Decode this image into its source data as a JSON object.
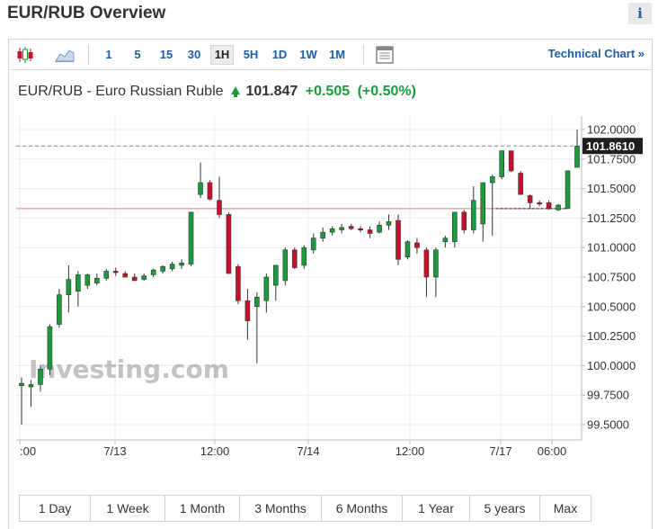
{
  "page": {
    "title": "EUR/RUB Overview",
    "info_glyph": "i"
  },
  "toolbar": {
    "candle_icon": "candlestick-chart-icon",
    "area_icon": "area-chart-icon",
    "timeframes": [
      "1",
      "5",
      "15",
      "30",
      "1H",
      "5H",
      "1D",
      "1W",
      "1M"
    ],
    "active_timeframe": "1H",
    "layout_icon": "chart-layout-icon",
    "technical_link": "Technical Chart »"
  },
  "quote": {
    "name": "EUR/RUB - Euro Russian Ruble",
    "price": "101.847",
    "change": "+0.505",
    "change_pct": "(+0.50%)",
    "direction_icon": "up-arrow-icon",
    "up_color": "#1a9c3c",
    "down_color": "#c8102e"
  },
  "chart_data": {
    "type": "candlestick",
    "title": "",
    "xlabel": "",
    "ylabel": "",
    "ylim": [
      99.4,
      102.1
    ],
    "y_ticks": [
      "102.0000",
      "101.7500",
      "101.5000",
      "101.2500",
      "101.0000",
      "100.7500",
      "100.5000",
      "100.2500",
      "100.0000",
      "99.7500",
      "99.5000"
    ],
    "x_ticks": [
      ":00",
      "7/13",
      "12:00",
      "7/14",
      "12:00",
      "7/17",
      "06:00"
    ],
    "current_price_label": "101.8610",
    "current_price": 101.861,
    "reference_price": 101.33,
    "watermark": "Investing.com",
    "grid": true,
    "candles": [
      {
        "o": 99.83,
        "h": 99.9,
        "l": 99.5,
        "c": 99.85
      },
      {
        "o": 99.82,
        "h": 99.88,
        "l": 99.65,
        "c": 99.84
      },
      {
        "o": 99.84,
        "h": 100.0,
        "l": 99.78,
        "c": 99.97
      },
      {
        "o": 99.97,
        "h": 100.35,
        "l": 99.92,
        "c": 100.33
      },
      {
        "o": 100.35,
        "h": 100.65,
        "l": 100.32,
        "c": 100.6
      },
      {
        "o": 100.6,
        "h": 100.85,
        "l": 100.45,
        "c": 100.73
      },
      {
        "o": 100.63,
        "h": 100.8,
        "l": 100.5,
        "c": 100.77
      },
      {
        "o": 100.68,
        "h": 100.78,
        "l": 100.65,
        "c": 100.77
      },
      {
        "o": 100.7,
        "h": 100.78,
        "l": 100.68,
        "c": 100.74
      },
      {
        "o": 100.74,
        "h": 100.82,
        "l": 100.72,
        "c": 100.8
      },
      {
        "o": 100.8,
        "h": 100.83,
        "l": 100.76,
        "c": 100.79
      },
      {
        "o": 100.78,
        "h": 100.8,
        "l": 100.75,
        "c": 100.75
      },
      {
        "o": 100.75,
        "h": 100.78,
        "l": 100.72,
        "c": 100.72
      },
      {
        "o": 100.73,
        "h": 100.78,
        "l": 100.72,
        "c": 100.76
      },
      {
        "o": 100.77,
        "h": 100.82,
        "l": 100.75,
        "c": 100.81
      },
      {
        "o": 100.8,
        "h": 100.85,
        "l": 100.78,
        "c": 100.84
      },
      {
        "o": 100.82,
        "h": 100.88,
        "l": 100.8,
        "c": 100.86
      },
      {
        "o": 100.85,
        "h": 100.9,
        "l": 100.82,
        "c": 100.87
      },
      {
        "o": 100.86,
        "h": 101.3,
        "l": 100.84,
        "c": 101.3
      },
      {
        "o": 101.45,
        "h": 101.72,
        "l": 101.42,
        "c": 101.55
      },
      {
        "o": 101.55,
        "h": 101.57,
        "l": 101.4,
        "c": 101.41
      },
      {
        "o": 101.4,
        "h": 101.6,
        "l": 101.25,
        "c": 101.28
      },
      {
        "o": 101.28,
        "h": 101.3,
        "l": 100.78,
        "c": 100.78
      },
      {
        "o": 100.84,
        "h": 100.86,
        "l": 100.52,
        "c": 100.55
      },
      {
        "o": 100.55,
        "h": 100.65,
        "l": 100.22,
        "c": 100.38
      },
      {
        "o": 100.5,
        "h": 100.62,
        "l": 100.02,
        "c": 100.58
      },
      {
        "o": 100.55,
        "h": 100.78,
        "l": 100.45,
        "c": 100.75
      },
      {
        "o": 100.68,
        "h": 100.85,
        "l": 100.55,
        "c": 100.85
      },
      {
        "o": 100.72,
        "h": 101.0,
        "l": 100.68,
        "c": 100.98
      },
      {
        "o": 100.98,
        "h": 101.0,
        "l": 100.82,
        "c": 100.83
      },
      {
        "o": 100.85,
        "h": 101.02,
        "l": 100.82,
        "c": 101.0
      },
      {
        "o": 100.98,
        "h": 101.12,
        "l": 100.95,
        "c": 101.08
      },
      {
        "o": 101.08,
        "h": 101.17,
        "l": 101.05,
        "c": 101.13
      },
      {
        "o": 101.13,
        "h": 101.18,
        "l": 101.1,
        "c": 101.16
      },
      {
        "o": 101.15,
        "h": 101.2,
        "l": 101.12,
        "c": 101.17
      },
      {
        "o": 101.18,
        "h": 101.2,
        "l": 101.15,
        "c": 101.16
      },
      {
        "o": 101.16,
        "h": 101.18,
        "l": 101.13,
        "c": 101.15
      },
      {
        "o": 101.15,
        "h": 101.18,
        "l": 101.08,
        "c": 101.12
      },
      {
        "o": 101.13,
        "h": 101.22,
        "l": 101.12,
        "c": 101.19
      },
      {
        "o": 101.19,
        "h": 101.28,
        "l": 101.15,
        "c": 101.22
      },
      {
        "o": 101.23,
        "h": 101.28,
        "l": 100.85,
        "c": 100.9
      },
      {
        "o": 100.92,
        "h": 101.06,
        "l": 100.9,
        "c": 101.05
      },
      {
        "o": 101.04,
        "h": 101.08,
        "l": 100.95,
        "c": 101.0
      },
      {
        "o": 100.98,
        "h": 101.0,
        "l": 100.58,
        "c": 100.75
      },
      {
        "o": 100.75,
        "h": 101.0,
        "l": 100.58,
        "c": 100.98
      },
      {
        "o": 101.05,
        "h": 101.1,
        "l": 101.0,
        "c": 101.08
      },
      {
        "o": 101.05,
        "h": 101.3,
        "l": 101.0,
        "c": 101.3
      },
      {
        "o": 101.3,
        "h": 101.32,
        "l": 101.12,
        "c": 101.15
      },
      {
        "o": 101.15,
        "h": 101.52,
        "l": 101.12,
        "c": 101.4
      },
      {
        "o": 101.2,
        "h": 101.55,
        "l": 101.05,
        "c": 101.55
      },
      {
        "o": 101.55,
        "h": 101.62,
        "l": 101.1,
        "c": 101.6
      },
      {
        "o": 101.6,
        "h": 101.82,
        "l": 101.58,
        "c": 101.82
      },
      {
        "o": 101.82,
        "h": 101.82,
        "l": 101.64,
        "c": 101.65
      },
      {
        "o": 101.63,
        "h": 101.65,
        "l": 101.45,
        "c": 101.45
      },
      {
        "o": 101.44,
        "h": 101.45,
        "l": 101.33,
        "c": 101.38
      },
      {
        "o": 101.38,
        "h": 101.4,
        "l": 101.35,
        "c": 101.37
      },
      {
        "o": 101.38,
        "h": 101.4,
        "l": 101.32,
        "c": 101.33
      },
      {
        "o": 101.32,
        "h": 101.37,
        "l": 101.31,
        "c": 101.36
      },
      {
        "o": 101.33,
        "h": 101.65,
        "l": 101.33,
        "c": 101.65
      },
      {
        "o": 101.68,
        "h": 102.0,
        "l": 101.68,
        "c": 101.86
      }
    ]
  },
  "ranges": [
    "1 Day",
    "1 Week",
    "1 Month",
    "3 Months",
    "6 Months",
    "1 Year",
    "5 years",
    "Max"
  ]
}
